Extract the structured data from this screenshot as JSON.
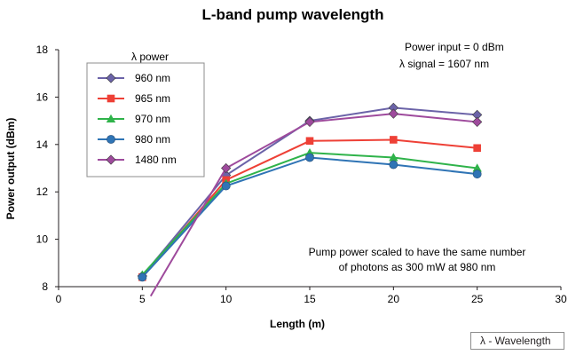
{
  "chart_data": {
    "type": "line",
    "title": "L-band pump wavelength",
    "xlabel": "Length (m)",
    "ylabel": "Power output (dBm)",
    "xlim": [
      0,
      30
    ],
    "ylim": [
      8,
      18
    ],
    "x_ticks": [
      "0",
      "5",
      "10",
      "15",
      "20",
      "25",
      "30"
    ],
    "y_ticks": [
      "8",
      "10",
      "12",
      "14",
      "16",
      "18"
    ],
    "grid": false,
    "legend": {
      "title": "λ power",
      "position": "top-left"
    },
    "series": [
      {
        "name": "960 nm",
        "color": "#6b63a8",
        "marker": "diamond",
        "x": [
          5,
          10,
          15,
          20,
          25
        ],
        "y": [
          8.45,
          12.7,
          15.0,
          15.55,
          15.25
        ]
      },
      {
        "name": "965 nm",
        "color": "#ee4036",
        "marker": "square",
        "x": [
          5,
          10,
          15,
          20,
          25
        ],
        "y": [
          8.4,
          12.5,
          14.15,
          14.2,
          13.85
        ]
      },
      {
        "name": "970 nm",
        "color": "#2fb34a",
        "marker": "triangle",
        "x": [
          5,
          10,
          15,
          20,
          25
        ],
        "y": [
          8.5,
          12.35,
          13.65,
          13.45,
          13.0
        ]
      },
      {
        "name": "980 nm",
        "color": "#2f74b5",
        "marker": "circle",
        "x": [
          5,
          10,
          15,
          20,
          25
        ],
        "y": [
          8.4,
          12.25,
          13.45,
          13.15,
          12.75
        ]
      },
      {
        "name": "1480 nm",
        "color": "#9e4a9c",
        "marker": "diamond",
        "x": [
          5.5,
          10,
          15,
          20,
          25
        ],
        "y": [
          7.6,
          13.0,
          14.95,
          15.3,
          14.95
        ]
      }
    ],
    "annotations": {
      "top_right": [
        "Power input = 0 dBm",
        "λ signal = 1607 nm"
      ],
      "middle_right": [
        "Pump power scaled to have the same number",
        "of photons as 300 mW at 980 nm"
      ]
    },
    "caption": "λ - Wavelength"
  }
}
